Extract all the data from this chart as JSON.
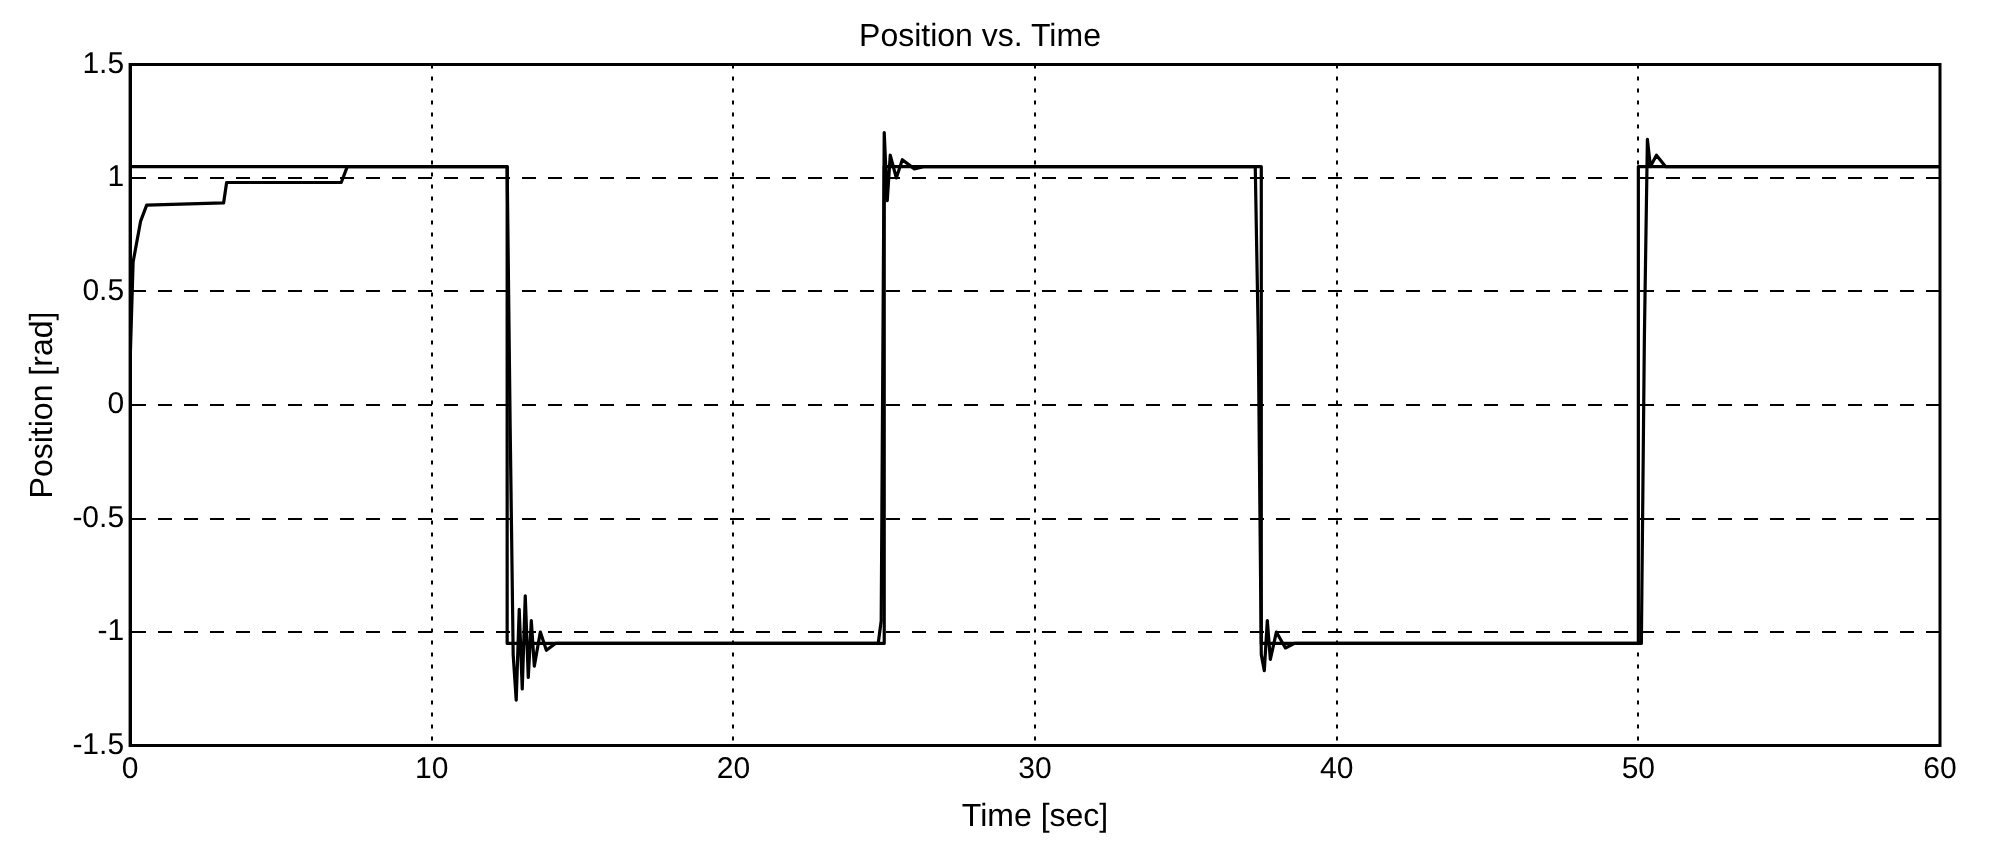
{
  "chart_data": {
    "type": "line",
    "title": "Position vs. Time",
    "xlabel": "Time [sec]",
    "ylabel": "Position [rad]",
    "xlim": [
      0,
      60
    ],
    "ylim": [
      -1.5,
      1.5
    ],
    "xticks": [
      0,
      10,
      20,
      30,
      40,
      50,
      60
    ],
    "yticks": [
      -1.5,
      -1,
      -0.5,
      0,
      0.5,
      1,
      1.5
    ],
    "grid": true,
    "marker": "none",
    "line_style": "solid",
    "series": [
      {
        "color": "#000000",
        "x": [
          0,
          12.5,
          12.5,
          25,
          25,
          37.5,
          37.5,
          50,
          50,
          60
        ],
        "values": [
          1.05,
          1.05,
          -1.05,
          -1.05,
          1.05,
          1.05,
          -1.05,
          -1.05,
          1.05,
          1.05
        ]
      },
      {
        "color": "#000000",
        "x": [
          0,
          0.1,
          0.35,
          0.55,
          3.1,
          3.2,
          7,
          7.2,
          12.5,
          12.6,
          12.7,
          12.8,
          12.9,
          13.0,
          13.1,
          13.2,
          13.3,
          13.4,
          13.6,
          13.8,
          14.1,
          24.8,
          24.9,
          25.0,
          25.1,
          25.2,
          25.4,
          25.6,
          26.0,
          26.3,
          37.3,
          37.4,
          37.5,
          37.6,
          37.7,
          37.8,
          38.0,
          38.3,
          38.6,
          50.1,
          50.2,
          50.3,
          50.4,
          50.6,
          50.9,
          60
        ],
        "values": [
          0.19,
          0.63,
          0.81,
          0.88,
          0.89,
          0.98,
          0.98,
          1.05,
          1.05,
          -0.1,
          -1.1,
          -1.3,
          -0.9,
          -1.25,
          -0.84,
          -1.2,
          -0.95,
          -1.15,
          -1.0,
          -1.08,
          -1.05,
          -1.05,
          -0.95,
          1.2,
          0.9,
          1.1,
          1.0,
          1.08,
          1.04,
          1.05,
          1.05,
          0.3,
          -1.1,
          -1.17,
          -0.95,
          -1.12,
          -1.0,
          -1.07,
          -1.05,
          -1.05,
          0.3,
          1.17,
          1.05,
          1.1,
          1.05,
          1.05
        ]
      }
    ]
  }
}
